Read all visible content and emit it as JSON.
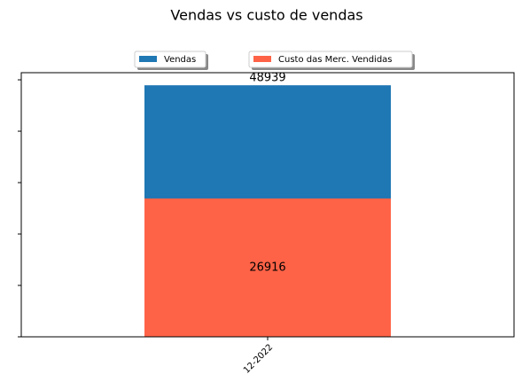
{
  "chart_data": {
    "type": "bar",
    "title": "Vendas vs custo de vendas",
    "categories": [
      "12-2022"
    ],
    "series": [
      {
        "name": "Vendas",
        "color": "#1f77b4",
        "values": [
          48939
        ]
      },
      {
        "name": "Custo das Merc. Vendidas",
        "color": "#ff6347",
        "values": [
          26916
        ]
      }
    ],
    "ylim": [
      0,
      51386
    ],
    "yticks": [
      0,
      10000,
      20000,
      30000,
      40000,
      50000
    ]
  }
}
